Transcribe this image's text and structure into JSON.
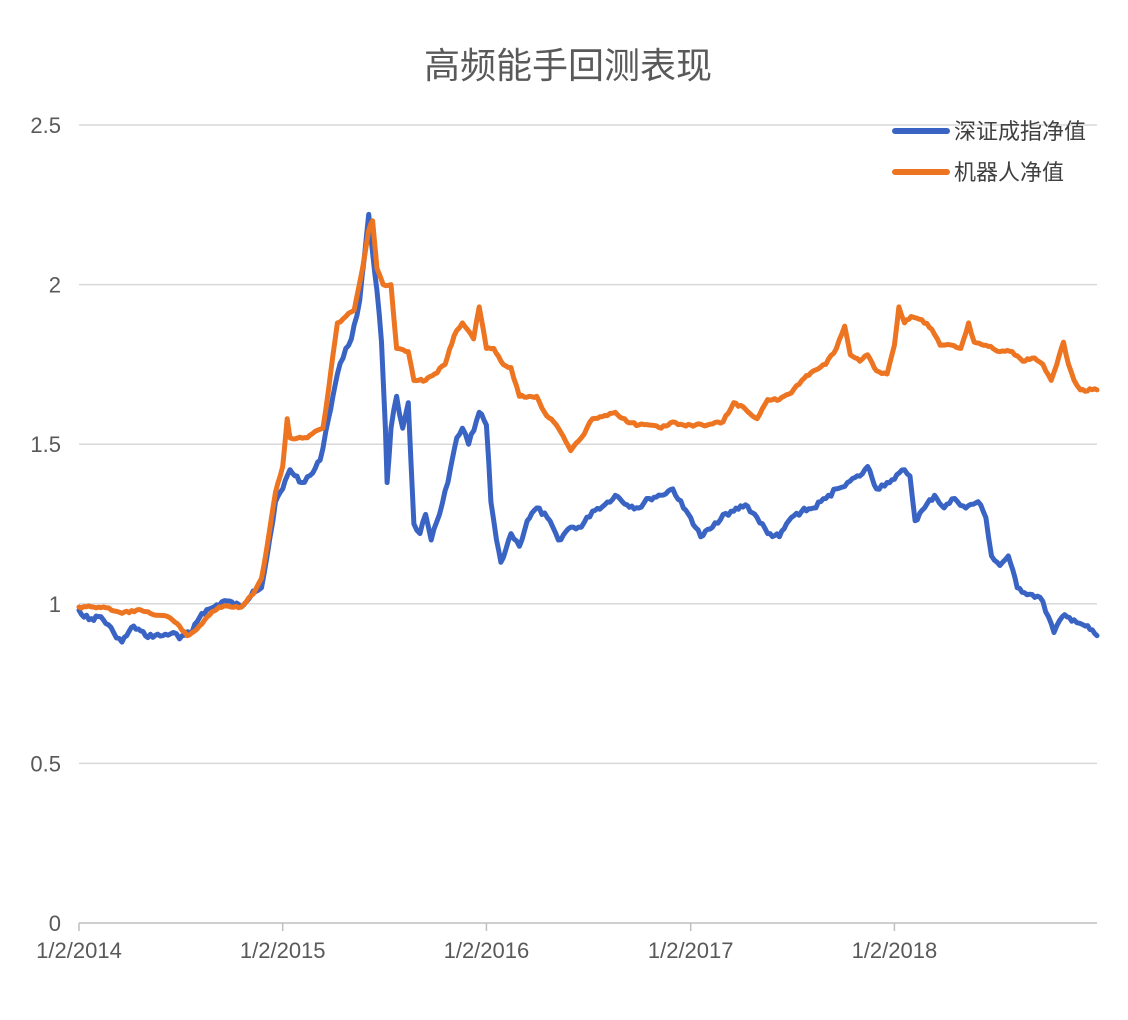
{
  "chart_data": {
    "type": "line",
    "title": "高频能手回测表现",
    "xlabel": "",
    "ylabel": "",
    "ylim": [
      0,
      2.5
    ],
    "yticks": [
      "0",
      "0.5",
      "1",
      "1.5",
      "2",
      "2.5"
    ],
    "yticks_values": [
      0,
      0.5,
      1,
      1.5,
      2,
      2.5
    ],
    "xlim": [
      "2014-01-02",
      "2018-12-31"
    ],
    "xticks": [
      "1/2/2014",
      "1/2/2015",
      "1/2/2016",
      "1/2/2017",
      "1/2/2018"
    ],
    "xticks_values": [
      "2014-01-02",
      "2015-01-02",
      "2016-01-02",
      "2017-01-02",
      "2018-01-02"
    ],
    "grid": "horizontal",
    "legend": "top-right",
    "series": [
      {
        "name": "深证成指净值",
        "color": "#3a64c4",
        "points": [
          [
            "2014-01-02",
            0.98
          ],
          [
            "2014-01-20",
            0.95
          ],
          [
            "2014-02-10",
            0.96
          ],
          [
            "2014-03-05",
            0.91
          ],
          [
            "2014-03-20",
            0.88
          ],
          [
            "2014-04-10",
            0.93
          ],
          [
            "2014-05-01",
            0.9
          ],
          [
            "2014-06-01",
            0.9
          ],
          [
            "2014-06-20",
            0.91
          ],
          [
            "2014-07-01",
            0.89
          ],
          [
            "2014-07-20",
            0.91
          ],
          [
            "2014-08-10",
            0.97
          ],
          [
            "2014-09-01",
            0.99
          ],
          [
            "2014-09-20",
            1.01
          ],
          [
            "2014-10-20",
            0.99
          ],
          [
            "2014-11-10",
            1.04
          ],
          [
            "2014-11-25",
            1.05
          ],
          [
            "2014-12-05",
            1.15
          ],
          [
            "2014-12-20",
            1.32
          ],
          [
            "2015-01-02",
            1.36
          ],
          [
            "2015-01-15",
            1.42
          ],
          [
            "2015-02-05",
            1.38
          ],
          [
            "2015-02-25",
            1.41
          ],
          [
            "2015-03-10",
            1.45
          ],
          [
            "2015-03-25",
            1.58
          ],
          [
            "2015-04-10",
            1.72
          ],
          [
            "2015-04-25",
            1.8
          ],
          [
            "2015-05-05",
            1.83
          ],
          [
            "2015-05-20",
            1.95
          ],
          [
            "2015-06-01",
            2.15
          ],
          [
            "2015-06-05",
            2.22
          ],
          [
            "2015-06-12",
            2.1
          ],
          [
            "2015-06-20",
            1.98
          ],
          [
            "2015-06-28",
            1.82
          ],
          [
            "2015-07-05",
            1.55
          ],
          [
            "2015-07-08",
            1.38
          ],
          [
            "2015-07-15",
            1.55
          ],
          [
            "2015-07-25",
            1.65
          ],
          [
            "2015-08-05",
            1.55
          ],
          [
            "2015-08-15",
            1.63
          ],
          [
            "2015-08-25",
            1.25
          ],
          [
            "2015-09-05",
            1.22
          ],
          [
            "2015-09-15",
            1.28
          ],
          [
            "2015-09-25",
            1.2
          ],
          [
            "2015-10-10",
            1.28
          ],
          [
            "2015-10-25",
            1.38
          ],
          [
            "2015-11-10",
            1.52
          ],
          [
            "2015-11-20",
            1.55
          ],
          [
            "2015-12-01",
            1.5
          ],
          [
            "2015-12-20",
            1.6
          ],
          [
            "2016-01-02",
            1.56
          ],
          [
            "2016-01-10",
            1.32
          ],
          [
            "2016-01-20",
            1.2
          ],
          [
            "2016-01-28",
            1.13
          ],
          [
            "2016-02-15",
            1.22
          ],
          [
            "2016-03-01",
            1.18
          ],
          [
            "2016-03-15",
            1.26
          ],
          [
            "2016-04-01",
            1.3
          ],
          [
            "2016-04-20",
            1.27
          ],
          [
            "2016-05-10",
            1.2
          ],
          [
            "2016-06-01",
            1.24
          ],
          [
            "2016-06-20",
            1.24
          ],
          [
            "2016-07-10",
            1.29
          ],
          [
            "2016-08-01",
            1.31
          ],
          [
            "2016-08-20",
            1.34
          ],
          [
            "2016-09-10",
            1.31
          ],
          [
            "2016-10-01",
            1.3
          ],
          [
            "2016-10-20",
            1.33
          ],
          [
            "2016-11-10",
            1.34
          ],
          [
            "2016-12-01",
            1.36
          ],
          [
            "2016-12-20",
            1.3
          ],
          [
            "2017-01-02",
            1.27
          ],
          [
            "2017-01-20",
            1.21
          ],
          [
            "2017-02-10",
            1.24
          ],
          [
            "2017-03-01",
            1.28
          ],
          [
            "2017-03-20",
            1.29
          ],
          [
            "2017-04-10",
            1.31
          ],
          [
            "2017-05-01",
            1.27
          ],
          [
            "2017-05-20",
            1.22
          ],
          [
            "2017-06-10",
            1.21
          ],
          [
            "2017-07-01",
            1.27
          ],
          [
            "2017-07-20",
            1.29
          ],
          [
            "2017-08-10",
            1.3
          ],
          [
            "2017-09-01",
            1.33
          ],
          [
            "2017-09-20",
            1.36
          ],
          [
            "2017-10-10",
            1.38
          ],
          [
            "2017-11-01",
            1.4
          ],
          [
            "2017-11-15",
            1.43
          ],
          [
            "2017-12-01",
            1.36
          ],
          [
            "2017-12-20",
            1.38
          ],
          [
            "2018-01-02",
            1.39
          ],
          [
            "2018-01-20",
            1.42
          ],
          [
            "2018-01-30",
            1.4
          ],
          [
            "2018-02-08",
            1.26
          ],
          [
            "2018-02-25",
            1.3
          ],
          [
            "2018-03-15",
            1.34
          ],
          [
            "2018-04-01",
            1.3
          ],
          [
            "2018-04-20",
            1.33
          ],
          [
            "2018-05-10",
            1.3
          ],
          [
            "2018-06-01",
            1.32
          ],
          [
            "2018-06-15",
            1.27
          ],
          [
            "2018-06-25",
            1.15
          ],
          [
            "2018-07-10",
            1.12
          ],
          [
            "2018-07-25",
            1.15
          ],
          [
            "2018-08-10",
            1.05
          ],
          [
            "2018-09-01",
            1.03
          ],
          [
            "2018-09-20",
            1.02
          ],
          [
            "2018-10-05",
            0.96
          ],
          [
            "2018-10-15",
            0.91
          ],
          [
            "2018-10-30",
            0.96
          ],
          [
            "2018-11-20",
            0.95
          ],
          [
            "2018-12-10",
            0.93
          ],
          [
            "2018-12-31",
            0.9
          ]
        ]
      },
      {
        "name": "机器人净值",
        "color": "#ed7420",
        "points": [
          [
            "2014-01-02",
            0.99
          ],
          [
            "2014-02-15",
            0.99
          ],
          [
            "2014-03-01",
            0.98
          ],
          [
            "2014-03-20",
            0.97
          ],
          [
            "2014-04-15",
            0.98
          ],
          [
            "2014-05-10",
            0.97
          ],
          [
            "2014-06-10",
            0.96
          ],
          [
            "2014-07-01",
            0.93
          ],
          [
            "2014-07-15",
            0.9
          ],
          [
            "2014-08-01",
            0.92
          ],
          [
            "2014-08-20",
            0.96
          ],
          [
            "2014-09-10",
            0.99
          ],
          [
            "2014-10-01",
            0.99
          ],
          [
            "2014-10-20",
            0.99
          ],
          [
            "2014-11-10",
            1.03
          ],
          [
            "2014-11-25",
            1.08
          ],
          [
            "2014-12-05",
            1.18
          ],
          [
            "2014-12-20",
            1.35
          ],
          [
            "2015-01-02",
            1.43
          ],
          [
            "2015-01-10",
            1.58
          ],
          [
            "2015-01-15",
            1.52
          ],
          [
            "2015-02-15",
            1.52
          ],
          [
            "2015-03-01",
            1.54
          ],
          [
            "2015-03-15",
            1.55
          ],
          [
            "2015-03-25",
            1.67
          ],
          [
            "2015-04-10",
            1.88
          ],
          [
            "2015-04-25",
            1.9
          ],
          [
            "2015-05-10",
            1.92
          ],
          [
            "2015-05-25",
            2.05
          ],
          [
            "2015-06-05",
            2.17
          ],
          [
            "2015-06-12",
            2.2
          ],
          [
            "2015-06-20",
            2.05
          ],
          [
            "2015-07-01",
            2.0
          ],
          [
            "2015-07-15",
            2.0
          ],
          [
            "2015-07-25",
            1.8
          ],
          [
            "2015-08-15",
            1.79
          ],
          [
            "2015-08-25",
            1.7
          ],
          [
            "2015-09-15",
            1.7
          ],
          [
            "2015-10-01",
            1.72
          ],
          [
            "2015-10-20",
            1.75
          ],
          [
            "2015-11-05",
            1.84
          ],
          [
            "2015-11-20",
            1.88
          ],
          [
            "2015-12-10",
            1.83
          ],
          [
            "2015-12-20",
            1.93
          ],
          [
            "2016-01-02",
            1.8
          ],
          [
            "2016-01-15",
            1.8
          ],
          [
            "2016-02-01",
            1.75
          ],
          [
            "2016-02-15",
            1.74
          ],
          [
            "2016-03-01",
            1.65
          ],
          [
            "2016-04-01",
            1.65
          ],
          [
            "2016-04-15",
            1.6
          ],
          [
            "2016-05-10",
            1.55
          ],
          [
            "2016-06-01",
            1.48
          ],
          [
            "2016-06-20",
            1.52
          ],
          [
            "2016-07-10",
            1.58
          ],
          [
            "2016-08-01",
            1.59
          ],
          [
            "2016-08-20",
            1.6
          ],
          [
            "2016-09-10",
            1.57
          ],
          [
            "2016-10-01",
            1.56
          ],
          [
            "2016-10-20",
            1.56
          ],
          [
            "2016-11-10",
            1.55
          ],
          [
            "2016-12-01",
            1.57
          ],
          [
            "2016-12-20",
            1.56
          ],
          [
            "2017-01-02",
            1.56
          ],
          [
            "2017-02-01",
            1.56
          ],
          [
            "2017-03-01",
            1.57
          ],
          [
            "2017-03-20",
            1.63
          ],
          [
            "2017-04-10",
            1.61
          ],
          [
            "2017-05-01",
            1.58
          ],
          [
            "2017-05-20",
            1.64
          ],
          [
            "2017-06-10",
            1.64
          ],
          [
            "2017-07-01",
            1.66
          ],
          [
            "2017-07-20",
            1.7
          ],
          [
            "2017-08-10",
            1.73
          ],
          [
            "2017-09-01",
            1.75
          ],
          [
            "2017-09-20",
            1.8
          ],
          [
            "2017-10-05",
            1.87
          ],
          [
            "2017-10-15",
            1.78
          ],
          [
            "2017-11-01",
            1.76
          ],
          [
            "2017-11-15",
            1.78
          ],
          [
            "2017-12-01",
            1.73
          ],
          [
            "2017-12-20",
            1.72
          ],
          [
            "2018-01-02",
            1.81
          ],
          [
            "2018-01-10",
            1.93
          ],
          [
            "2018-01-20",
            1.88
          ],
          [
            "2018-02-01",
            1.9
          ],
          [
            "2018-02-20",
            1.89
          ],
          [
            "2018-03-10",
            1.86
          ],
          [
            "2018-03-25",
            1.81
          ],
          [
            "2018-04-15",
            1.81
          ],
          [
            "2018-05-01",
            1.8
          ],
          [
            "2018-05-15",
            1.88
          ],
          [
            "2018-05-25",
            1.82
          ],
          [
            "2018-06-15",
            1.81
          ],
          [
            "2018-07-10",
            1.79
          ],
          [
            "2018-08-01",
            1.79
          ],
          [
            "2018-08-20",
            1.76
          ],
          [
            "2018-09-10",
            1.77
          ],
          [
            "2018-09-25",
            1.75
          ],
          [
            "2018-10-10",
            1.7
          ],
          [
            "2018-10-20",
            1.75
          ],
          [
            "2018-11-01",
            1.82
          ],
          [
            "2018-11-10",
            1.75
          ],
          [
            "2018-11-20",
            1.7
          ],
          [
            "2018-12-01",
            1.67
          ],
          [
            "2018-12-31",
            1.67
          ]
        ]
      }
    ]
  }
}
